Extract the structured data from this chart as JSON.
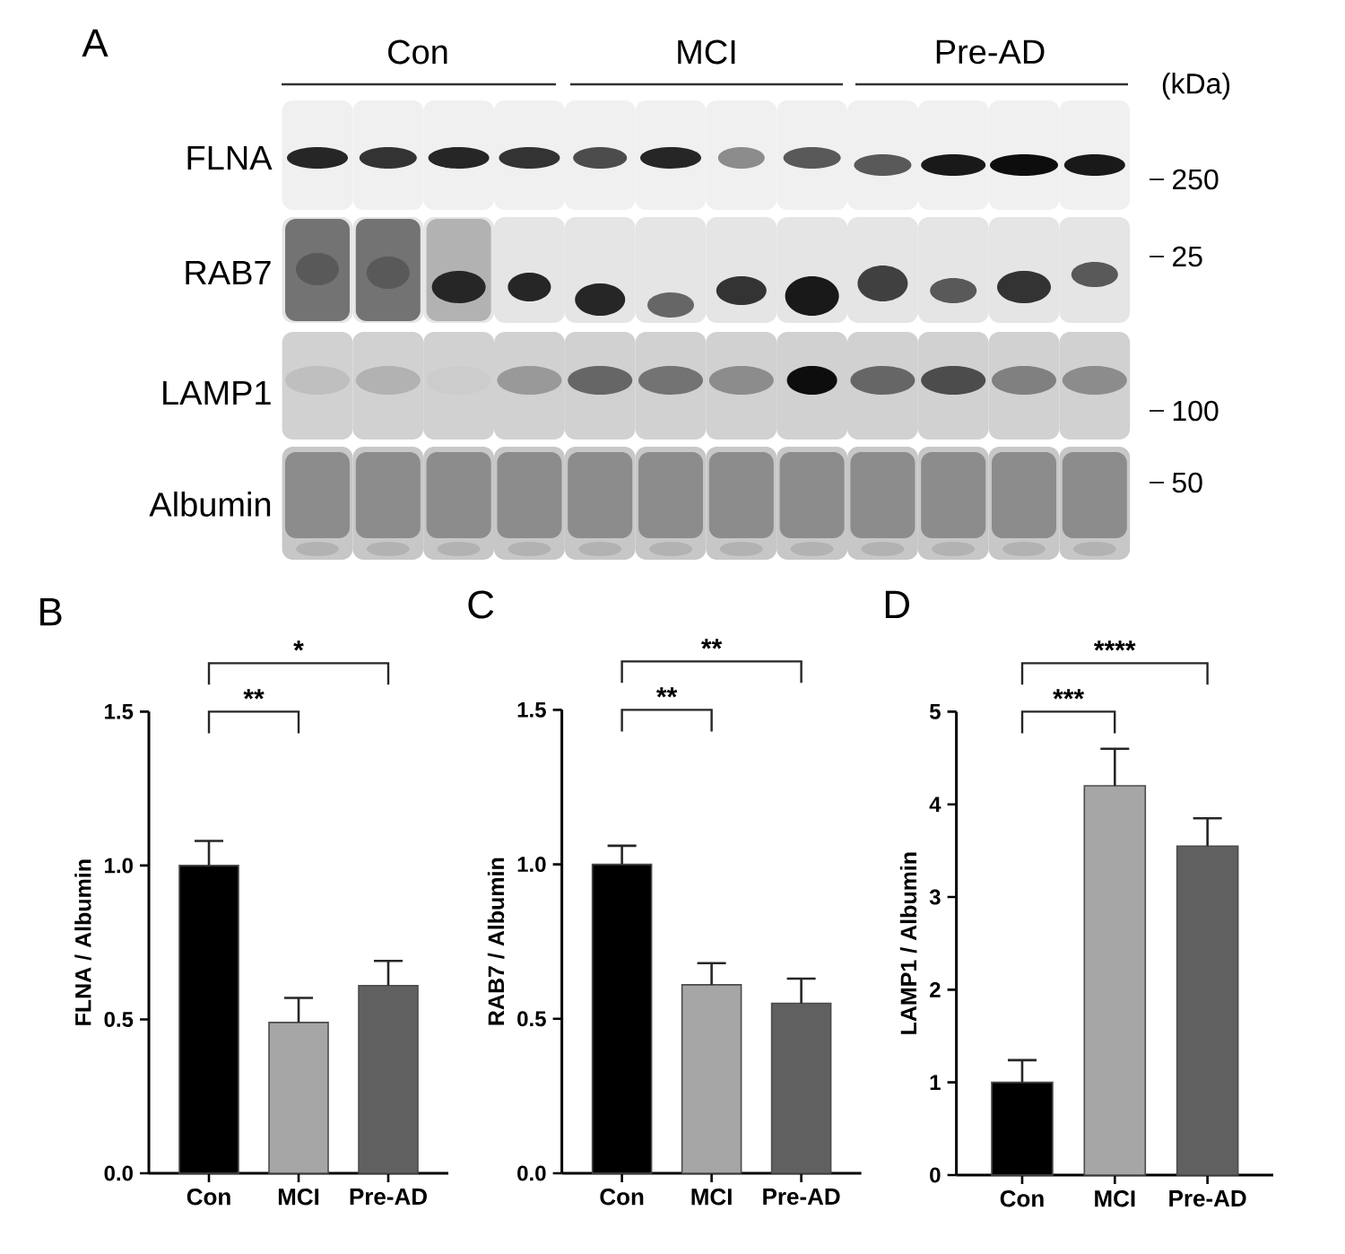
{
  "chart_data": [
    {
      "type": "other",
      "title": "A",
      "annotations": [
        "Con",
        "MCI",
        "Pre-AD",
        "(kDa)",
        "FLNA",
        "RAB7",
        "LAMP1",
        "Albumin",
        "250",
        "25",
        "100",
        "50"
      ]
    },
    {
      "type": "bar",
      "title": "B",
      "ylabel": "FLNA / Albumin",
      "categories": [
        "Con",
        "MCI",
        "Pre-AD"
      ],
      "values": [
        1.0,
        0.49,
        0.61
      ],
      "colors": [
        "#000000",
        "#a6a6a6",
        "#606060"
      ],
      "errors": [
        [
          1.0,
          1.08
        ],
        [
          0.49,
          0.57
        ],
        [
          0.61,
          0.69
        ]
      ],
      "ylim": [
        0,
        1.5
      ],
      "yticks": [
        {
          "value": 0,
          "label": "0.0"
        },
        {
          "value": 0.5,
          "label": "0.5"
        },
        {
          "value": 1,
          "label": "1.0"
        },
        {
          "value": 1.5,
          "label": "1.5"
        }
      ],
      "annotations": [
        "**",
        "*"
      ]
    },
    {
      "type": "bar",
      "title": "C",
      "ylabel": "RAB7 / Albumin",
      "categories": [
        "Con",
        "MCI",
        "Pre-AD"
      ],
      "values": [
        1.0,
        0.61,
        0.55
      ],
      "colors": [
        "#000000",
        "#a6a6a6",
        "#606060"
      ],
      "errors": [
        [
          1.0,
          1.06
        ],
        [
          0.61,
          0.68
        ],
        [
          0.55,
          0.63
        ]
      ],
      "ylim": [
        0,
        1.5
      ],
      "yticks": [
        {
          "value": 0,
          "label": "0.0"
        },
        {
          "value": 0.5,
          "label": "0.5"
        },
        {
          "value": 1,
          "label": "1.0"
        },
        {
          "value": 1.5,
          "label": "1.5"
        }
      ],
      "annotations": [
        "**",
        "**"
      ]
    },
    {
      "type": "bar",
      "title": "D",
      "ylabel": "LAMP1 / Albumin",
      "categories": [
        "Con",
        "MCI",
        "Pre-AD"
      ],
      "values": [
        1.0,
        4.2,
        3.55
      ],
      "colors": [
        "#000000",
        "#a6a6a6",
        "#606060"
      ],
      "errors": [
        [
          1.0,
          1.24
        ],
        [
          4.2,
          4.6
        ],
        [
          3.55,
          3.85
        ]
      ],
      "ylim": [
        0,
        5
      ],
      "yticks": [
        0,
        1,
        2,
        3,
        4,
        5
      ],
      "annotations": [
        "***",
        "****"
      ]
    }
  ]
}
